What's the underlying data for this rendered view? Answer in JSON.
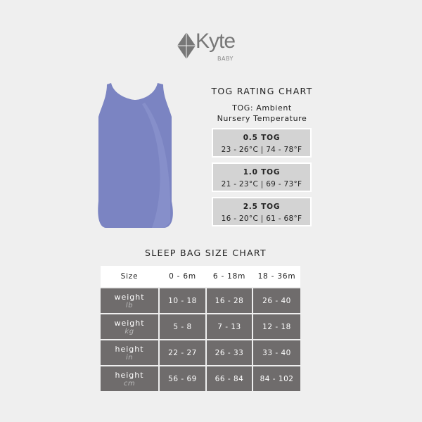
{
  "brand": {
    "name": "Kyte",
    "sub": "BABY",
    "product_color": "#7b84c2"
  },
  "tog": {
    "title": "TOG RATING CHART",
    "subtitle_line1": "TOG: Ambient",
    "subtitle_line2": "Nursery Temperature",
    "ratings": [
      {
        "name": "0.5 TOG",
        "range": "23 - 26°C | 74 - 78°F"
      },
      {
        "name": "1.0 TOG",
        "range": "21 - 23°C | 69 - 73°F"
      },
      {
        "name": "2.5 TOG",
        "range": "16 - 20°C | 61 - 68°F"
      }
    ]
  },
  "size_chart": {
    "title": "SLEEP BAG SIZE CHART",
    "headers": [
      "Size",
      "0 - 6m",
      "6 - 18m",
      "18 - 36m"
    ],
    "rows": [
      {
        "label": "weight",
        "unit": "lb",
        "values": [
          "10 - 18",
          "16 - 28",
          "26 - 40"
        ]
      },
      {
        "label": "weight",
        "unit": "kg",
        "values": [
          "5 - 8",
          "7 - 13",
          "12 - 18"
        ]
      },
      {
        "label": "height",
        "unit": "in",
        "values": [
          "22 - 27",
          "26 - 33",
          "33 - 40"
        ]
      },
      {
        "label": "height",
        "unit": "cm",
        "values": [
          "56 - 69",
          "66 - 84",
          "84 - 102"
        ]
      }
    ]
  }
}
